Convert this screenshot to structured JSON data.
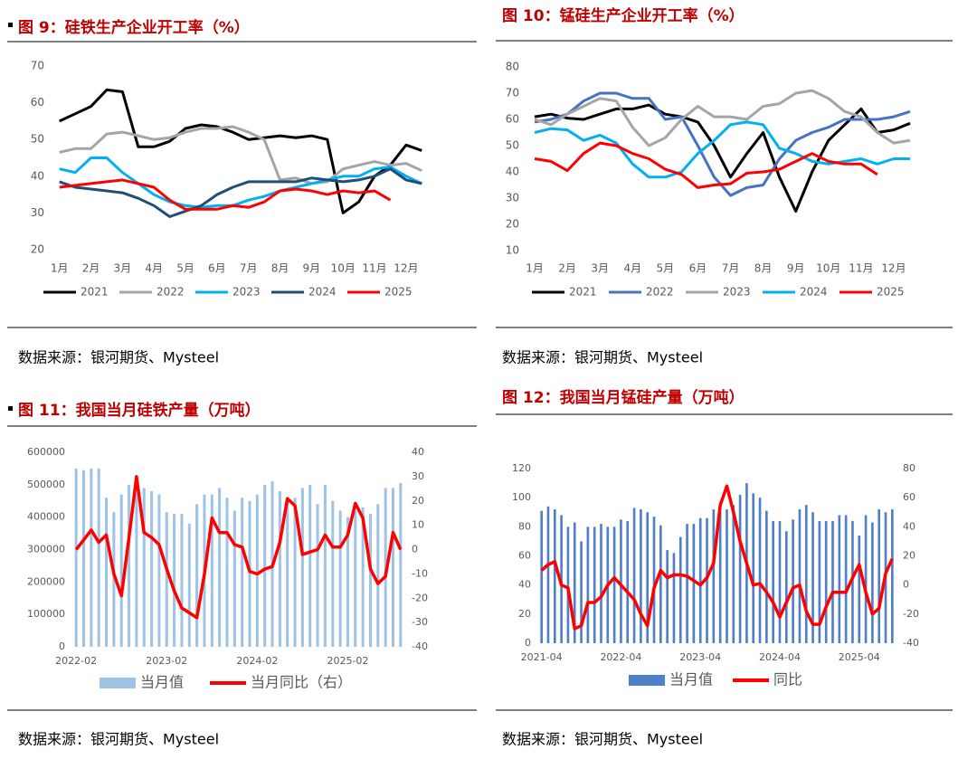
{
  "chart_data": [
    {
      "type": "line",
      "title": "图 9：硅铁生产企业开工率（%）",
      "categories": [
        "1月",
        null,
        "2月",
        null,
        "3月",
        null,
        "4月",
        null,
        "5月",
        null,
        "6月",
        null,
        "7月",
        null,
        "8月",
        null,
        "9月",
        null,
        "10月",
        null,
        "11月",
        null,
        "12月",
        null
      ],
      "ylim": [
        20,
        70
      ],
      "yticks": [
        20,
        30,
        40,
        50,
        60,
        70
      ],
      "grid": false,
      "series": [
        {
          "name": "2021",
          "color": "#000000",
          "values": [
            55,
            57,
            59,
            63.5,
            63,
            48,
            48,
            49.5,
            53,
            54,
            53.5,
            52,
            50,
            50.5,
            51,
            50.5,
            51,
            50,
            30,
            33,
            40,
            43,
            48.5,
            47
          ]
        },
        {
          "name": "2022",
          "color": "#a5a5a5",
          "values": [
            46.5,
            47.5,
            47.5,
            51.5,
            52,
            51,
            50,
            50.5,
            52,
            53,
            53,
            53.5,
            52,
            50,
            39,
            39.5,
            38,
            38.5,
            42,
            43,
            44,
            43,
            43.5,
            41.5
          ]
        },
        {
          "name": "2023",
          "color": "#00b0f0",
          "values": [
            42,
            41,
            45,
            45,
            41,
            38,
            35,
            33,
            32,
            31.5,
            32,
            32,
            33.5,
            34.5,
            36,
            37,
            38,
            39,
            40,
            40,
            42,
            42.5,
            40,
            38
          ]
        },
        {
          "name": "2024",
          "color": "#1f4e79",
          "values": [
            38.5,
            37,
            36.5,
            36,
            35.5,
            34,
            32,
            29,
            30.5,
            32,
            35,
            37,
            38.5,
            38.5,
            38.5,
            38.5,
            39.5,
            39,
            38.5,
            39,
            40,
            42,
            39,
            38
          ]
        },
        {
          "name": "2025",
          "color": "#ff0000",
          "values": [
            37,
            37.5,
            38,
            38.5,
            39,
            38,
            37,
            33.5,
            31,
            31,
            31,
            32,
            31.5,
            33,
            36,
            36.5,
            36,
            35,
            36,
            35.5,
            36,
            33.5,
            null,
            null
          ]
        }
      ]
    },
    {
      "type": "line",
      "title": "图 10：锰硅生产企业开工率（%）",
      "categories": [
        "1月",
        null,
        "2月",
        null,
        "3月",
        null,
        "4月",
        null,
        "5月",
        null,
        "6月",
        null,
        "7月",
        null,
        "8月",
        null,
        "9月",
        null,
        "10月",
        null,
        "11月",
        null,
        "12月",
        null
      ],
      "ylim": [
        10,
        80
      ],
      "yticks": [
        10,
        20,
        30,
        40,
        50,
        60,
        70,
        80
      ],
      "grid": false,
      "series": [
        {
          "name": "2021",
          "color": "#000000",
          "values": [
            61,
            62,
            60.5,
            60,
            62,
            64,
            64,
            65.5,
            62,
            61,
            59,
            50,
            38,
            47,
            55,
            38,
            25,
            40,
            52,
            58,
            64,
            55,
            56,
            58.5
          ]
        },
        {
          "name": "2022",
          "color": "#4472c4",
          "values": [
            59,
            60,
            62,
            67,
            70,
            70,
            68,
            68,
            60,
            61,
            50,
            38,
            31,
            34,
            35,
            45,
            52,
            55,
            57,
            60,
            60,
            60,
            61,
            63
          ]
        },
        {
          "name": "2023",
          "color": "#a5a5a5",
          "values": [
            60,
            58,
            62,
            65,
            68,
            67,
            57,
            50,
            53,
            60,
            65,
            61,
            61,
            60,
            65,
            66,
            70,
            71,
            68,
            63,
            61,
            55,
            51,
            52
          ]
        },
        {
          "name": "2024",
          "color": "#00b0f0",
          "values": [
            55,
            56.5,
            56,
            52,
            54,
            51,
            43,
            38,
            38,
            40,
            47,
            52,
            58,
            59,
            58,
            49,
            47,
            44,
            43,
            44,
            45,
            43,
            45,
            45
          ]
        },
        {
          "name": "2025",
          "color": "#ff0000",
          "values": [
            45,
            44,
            40.5,
            47,
            51,
            50,
            47,
            45,
            41,
            39,
            34,
            35,
            35.5,
            39.5,
            40,
            41,
            44,
            47,
            44,
            43,
            43,
            39,
            null,
            null
          ]
        }
      ]
    },
    {
      "type": "combo",
      "title": "图 11：我国当月硅铁产量（万吨）",
      "categories": [
        "2022-02",
        null,
        null,
        null,
        null,
        null,
        null,
        null,
        null,
        null,
        null,
        null,
        "2023-02",
        null,
        null,
        null,
        null,
        null,
        null,
        null,
        null,
        null,
        null,
        null,
        "2024-02",
        null,
        null,
        null,
        null,
        null,
        null,
        null,
        null,
        null,
        null,
        null,
        "2025-02",
        null,
        null,
        null,
        null,
        null,
        null,
        null
      ],
      "ylim": [
        0,
        600000
      ],
      "yticks": [
        0,
        100000,
        200000,
        300000,
        400000,
        500000,
        600000
      ],
      "y2lim": [
        -40,
        40
      ],
      "y2ticks": [
        -40,
        -30,
        -20,
        -10,
        0,
        10,
        20,
        30,
        40
      ],
      "grid": false,
      "series": [
        {
          "name": "当月值",
          "type": "bar",
          "color": "#9dc3e6",
          "values": [
            550000,
            545000,
            550000,
            550000,
            460000,
            415000,
            470000,
            500000,
            510000,
            490000,
            480000,
            470000,
            415000,
            410000,
            410000,
            380000,
            440000,
            470000,
            470000,
            490000,
            460000,
            420000,
            460000,
            450000,
            470000,
            500000,
            510000,
            480000,
            450000,
            460000,
            490000,
            500000,
            440000,
            500000,
            450000,
            420000,
            400000,
            420000,
            430000,
            410000,
            440000,
            490000,
            490000,
            505000
          ]
        },
        {
          "name": "当月同比（右）",
          "type": "line",
          "axis": "y2",
          "color": "#ff0000",
          "values": [
            0,
            4,
            8,
            3,
            6,
            -10,
            -19,
            5,
            30,
            7,
            5,
            2,
            -8,
            -17,
            -24,
            -26,
            -28,
            -10,
            13,
            7,
            7,
            2,
            1,
            -9,
            -10,
            -8,
            -7,
            3,
            21,
            18,
            -2,
            -1,
            0,
            6,
            1,
            1,
            6,
            19,
            13,
            -8,
            -14,
            -11,
            7,
            0
          ]
        }
      ]
    },
    {
      "type": "combo",
      "title": "图 12：我国当月锰硅产量（万吨）",
      "categories": [
        "2021-04",
        null,
        null,
        null,
        null,
        null,
        null,
        null,
        null,
        null,
        null,
        null,
        "2022-04",
        null,
        null,
        null,
        null,
        null,
        null,
        null,
        null,
        null,
        null,
        null,
        "2023-04",
        null,
        null,
        null,
        null,
        null,
        null,
        null,
        null,
        null,
        null,
        null,
        "2024-04",
        null,
        null,
        null,
        null,
        null,
        null,
        null,
        null,
        null,
        null,
        null,
        "2025-04",
        null,
        null,
        null,
        null,
        null
      ],
      "ylim": [
        0,
        120
      ],
      "yticks": [
        0,
        20,
        40,
        60,
        80,
        100,
        120
      ],
      "y2lim": [
        -40,
        80
      ],
      "y2ticks": [
        -40,
        -20,
        0,
        20,
        40,
        60,
        80
      ],
      "grid": false,
      "series": [
        {
          "name": "当月值",
          "type": "bar",
          "color": "#4f7fc6",
          "values": [
            91,
            94,
            92,
            88,
            80,
            83,
            70,
            80,
            80,
            82,
            80,
            80,
            85,
            84,
            93,
            92,
            90,
            87,
            81,
            64,
            62,
            73,
            82,
            82,
            86,
            86,
            92,
            90,
            92,
            95,
            102,
            110,
            103,
            100,
            91,
            84,
            84,
            77,
            85,
            92,
            95,
            90,
            84,
            84,
            84,
            88,
            88,
            84,
            74,
            88,
            83,
            92,
            90,
            92
          ]
        },
        {
          "name": "同比",
          "type": "line",
          "axis": "y2",
          "color": "#ff0000",
          "values": [
            10,
            14,
            16,
            0,
            -2,
            -30,
            -28,
            -12,
            -12,
            -8,
            0,
            5,
            0,
            -5,
            -10,
            -20,
            -28,
            -2,
            10,
            5,
            7,
            7,
            6,
            3,
            0,
            5,
            15,
            55,
            68,
            50,
            30,
            15,
            0,
            1,
            -5,
            -12,
            -22,
            -12,
            -2,
            0,
            -18,
            -27,
            -27,
            -15,
            -5,
            -5,
            -5,
            5,
            14,
            -5,
            -20,
            -16,
            8,
            18
          ]
        }
      ]
    }
  ],
  "sources": [
    "数据来源：银河期货、Mysteel",
    "数据来源：银河期货、Mysteel",
    "数据来源：银河期货、Mysteel",
    "数据来源：银河期货、Mysteel"
  ]
}
